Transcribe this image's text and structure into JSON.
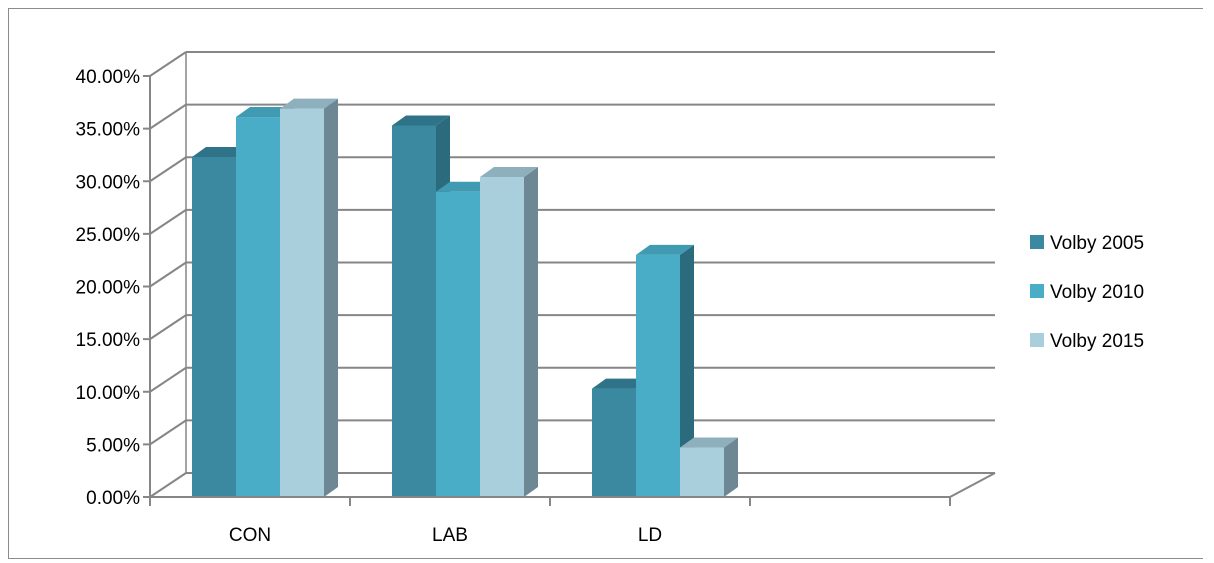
{
  "chart_data": {
    "type": "bar",
    "categories": [
      "CON",
      "LAB",
      "LD",
      ""
    ],
    "series": [
      {
        "name": "Volby 2005",
        "values": [
          32.3,
          35.3,
          10.3,
          null
        ],
        "color": "#3A89A1",
        "top_color": "#2F7388",
        "side_color": "#2C6A7D"
      },
      {
        "name": "Volby 2010",
        "values": [
          36.1,
          29.0,
          23.0,
          null
        ],
        "color": "#4AADC7",
        "top_color": "#3F9AB2",
        "side_color": "#2C6A7D"
      },
      {
        "name": "Volby 2015",
        "values": [
          36.9,
          30.4,
          4.7,
          null
        ],
        "color": "#A9CEDC",
        "top_color": "#8EB0BD",
        "side_color": "#6D8894"
      }
    ],
    "y_ticks": [
      "0.00%",
      "5.00%",
      "10.00%",
      "15.00%",
      "20.00%",
      "25.00%",
      "30.00%",
      "35.00%",
      "40.00%"
    ],
    "ylim": [
      0,
      40
    ],
    "grid": true,
    "legend_position": "right",
    "title": "",
    "xlabel": "",
    "ylabel": ""
  }
}
